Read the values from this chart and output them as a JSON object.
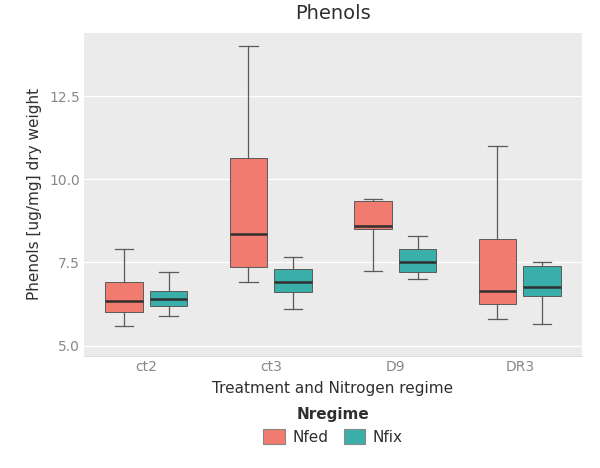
{
  "title": "Phenols",
  "xlabel": "Treatment and Nitrogen regime",
  "ylabel": "Phenols [ug/mg] dry weight",
  "plot_bg_color": "#EBEBEB",
  "fig_bg_color": "#FFFFFF",
  "grid_color": "#FFFFFF",
  "ylim": [
    4.7,
    14.4
  ],
  "yticks": [
    5.0,
    7.5,
    10.0,
    12.5
  ],
  "ytick_labels": [
    "5.0",
    "7.5",
    "10.0",
    "12.5"
  ],
  "categories": [
    "ct2",
    "ct3",
    "D9",
    "DR3"
  ],
  "colors": {
    "Nfed": "#F07B6E",
    "Nfix": "#3AAFA9"
  },
  "box_width": 0.3,
  "groups": [
    "Nfed",
    "Nfix"
  ],
  "legend_title": "Nregime",
  "offsets": {
    "Nfed": -0.18,
    "Nfix": 0.18
  },
  "boxes": {
    "ct2": {
      "Nfed": {
        "whislo": 5.6,
        "q1": 6.0,
        "med": 6.35,
        "q3": 6.9,
        "whishi": 7.9
      },
      "Nfix": {
        "whislo": 5.9,
        "q1": 6.2,
        "med": 6.4,
        "q3": 6.65,
        "whishi": 7.2
      }
    },
    "ct3": {
      "Nfed": {
        "whislo": 6.9,
        "q1": 7.35,
        "med": 8.35,
        "q3": 10.65,
        "whishi": 14.0
      },
      "Nfix": {
        "whislo": 6.1,
        "q1": 6.6,
        "med": 6.9,
        "q3": 7.3,
        "whishi": 7.65
      }
    },
    "D9": {
      "Nfed": {
        "whislo": 7.25,
        "q1": 8.5,
        "med": 8.6,
        "q3": 9.35,
        "whishi": 9.4
      },
      "Nfix": {
        "whislo": 7.0,
        "q1": 7.2,
        "med": 7.5,
        "q3": 7.9,
        "whishi": 8.3
      }
    },
    "DR3": {
      "Nfed": {
        "whislo": 5.8,
        "q1": 6.25,
        "med": 6.65,
        "q3": 8.2,
        "whishi": 11.0
      },
      "Nfix": {
        "whislo": 5.65,
        "q1": 6.5,
        "med": 6.75,
        "q3": 7.4,
        "whishi": 7.5
      }
    }
  },
  "title_fontsize": 14,
  "axis_label_fontsize": 11,
  "tick_fontsize": 10,
  "tick_color": "#888888",
  "legend_fontsize": 11,
  "legend_title_fontsize": 11
}
